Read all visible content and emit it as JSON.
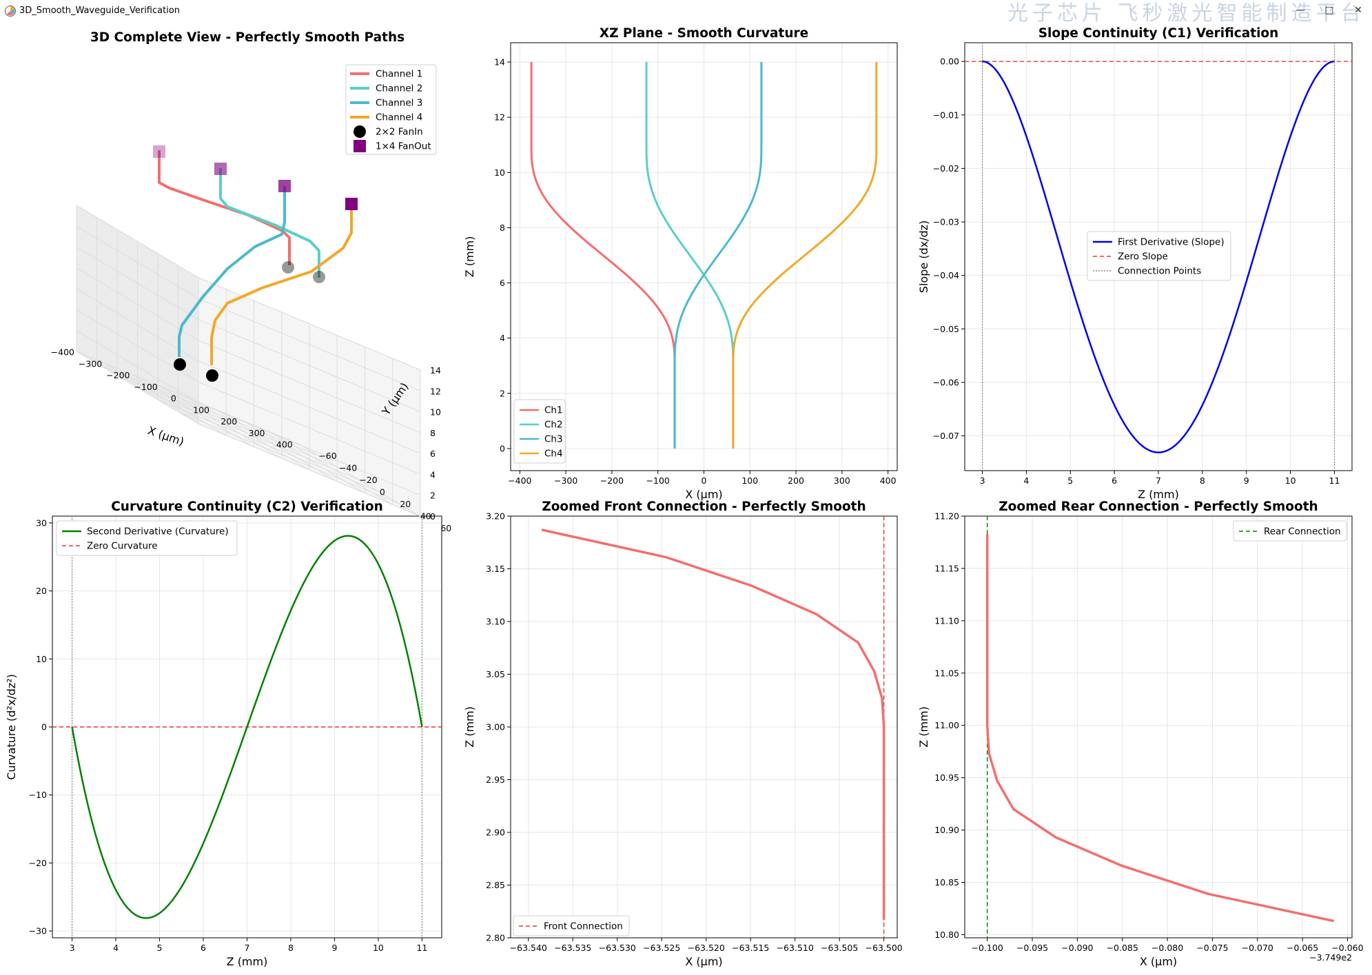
{
  "window": {
    "title": "3D_Smooth_Waveguide_Verification",
    "watermark": "光子芯片 飞秒激光智能制造平台",
    "minimize_label": "—",
    "maximize_label": "□",
    "close_label": "✕",
    "app_icon": "matplotlib-icon"
  },
  "colors": {
    "ch1": "#f46d6d",
    "ch2": "#59cfc8",
    "ch3": "#4bb8d0",
    "ch4": "#f1a82a",
    "blue": "#0000ee",
    "green": "#008000",
    "red_dash": "#ee3333",
    "purple": "#800080"
  },
  "chart_data": [
    {
      "id": "3d",
      "type": "line",
      "title": "3D Complete View - Perfectly Smooth Paths",
      "xlabel": "X (μm)",
      "ylabel": "Y (μm)",
      "zlabel": "",
      "x_ticks": [
        "−400",
        "−300",
        "−200",
        "−100",
        "0",
        "100",
        "200",
        "300",
        "400"
      ],
      "y_ticks": [
        "60",
        "40",
        "20",
        "0",
        "−20",
        "−40",
        "−60"
      ],
      "z_ticks": [
        "14",
        "12",
        "10",
        "8",
        "6",
        "4",
        "2",
        "0"
      ],
      "legend": [
        {
          "label": "Channel 1",
          "kind": "line",
          "color": "#f46d6d"
        },
        {
          "label": "Channel 2",
          "kind": "line",
          "color": "#59cfc8"
        },
        {
          "label": "Channel 3",
          "kind": "line",
          "color": "#4bb8d0"
        },
        {
          "label": "Channel 4",
          "kind": "line",
          "color": "#f1a82a"
        },
        {
          "label": "2×2 FanIn",
          "kind": "circle",
          "color": "#000000"
        },
        {
          "label": "1×4 FanOut",
          "kind": "square",
          "color": "#800080"
        }
      ],
      "legend_position": "top-right"
    },
    {
      "id": "xz",
      "type": "line",
      "title": "XZ Plane - Smooth Curvature",
      "xlabel": "X (μm)",
      "ylabel": "Z (mm)",
      "xlim": [
        -420,
        420
      ],
      "ylim": [
        -0.8,
        14.7
      ],
      "x_ticks": [
        -400,
        -300,
        -200,
        -100,
        0,
        100,
        200,
        300,
        400
      ],
      "x_tick_labels": [
        "−400",
        "−300",
        "−200",
        "−100",
        "0",
        "100",
        "200",
        "300",
        "400"
      ],
      "y_ticks": [
        0,
        2,
        4,
        6,
        8,
        10,
        12,
        14
      ],
      "y_tick_labels": [
        "0",
        "2",
        "4",
        "6",
        "8",
        "10",
        "12",
        "14"
      ],
      "legend_position": "bottom-left",
      "series": [
        {
          "name": "Ch1",
          "color": "#f46d6d",
          "x_start": -63.5,
          "x_end": -374.9,
          "z_bend_start": 3,
          "z_bend_end": 11,
          "z_top": 14
        },
        {
          "name": "Ch2",
          "color": "#59cfc8",
          "x_start": 63.5,
          "x_end": -124.9,
          "z_bend_start": 3,
          "z_bend_end": 11,
          "z_top": 14
        },
        {
          "name": "Ch3",
          "color": "#4bb8d0",
          "x_start": -63.5,
          "x_end": 124.9,
          "z_bend_start": 3,
          "z_bend_end": 11,
          "z_top": 14
        },
        {
          "name": "Ch4",
          "color": "#f1a82a",
          "x_start": 63.5,
          "x_end": 374.9,
          "z_bend_start": 3,
          "z_bend_end": 11,
          "z_top": 14
        }
      ]
    },
    {
      "id": "c1",
      "type": "line",
      "title": "Slope Continuity (C1) Verification",
      "xlabel": "Z (mm)",
      "ylabel": "Slope (dx/dz)",
      "xlim": [
        2.6,
        11.4
      ],
      "ylim": [
        -0.0765,
        0.0035
      ],
      "x_ticks": [
        3,
        4,
        5,
        6,
        7,
        8,
        9,
        10,
        11
      ],
      "x_tick_labels": [
        "3",
        "4",
        "5",
        "6",
        "7",
        "8",
        "9",
        "10",
        "11"
      ],
      "y_ticks": [
        0,
        -0.01,
        -0.02,
        -0.03,
        -0.04,
        -0.05,
        -0.06,
        -0.07
      ],
      "y_tick_labels": [
        "0.00",
        "−0.01",
        "−0.02",
        "−0.03",
        "−0.04",
        "−0.05",
        "−0.06",
        "−0.07"
      ],
      "legend_position": "center",
      "series": [
        {
          "name": "First Derivative (Slope)",
          "color": "#0000ee",
          "z_range": [
            3,
            11
          ],
          "min_value": -0.0731,
          "min_at": 7
        }
      ],
      "legend": [
        "First Derivative (Slope)",
        "Zero Slope",
        "Connection Points"
      ],
      "zero_line": 0,
      "connection_points": [
        3,
        11
      ]
    },
    {
      "id": "c2",
      "type": "line",
      "title": "Curvature Continuity (C2) Verification",
      "xlabel": "Z (mm)",
      "ylabel": "Curvature (d²x/dz²)",
      "xlim": [
        2.55,
        11.45
      ],
      "ylim": [
        -31,
        31
      ],
      "x_ticks": [
        3,
        4,
        5,
        6,
        7,
        8,
        9,
        10,
        11
      ],
      "x_tick_labels": [
        "3",
        "4",
        "5",
        "6",
        "7",
        "8",
        "9",
        "10",
        "11"
      ],
      "y_ticks": [
        30,
        20,
        10,
        0,
        -10,
        -20,
        -30
      ],
      "y_tick_labels": [
        "30",
        "20",
        "10",
        "0",
        "−10",
        "−20",
        "−30"
      ],
      "legend_position": "top-left",
      "series": [
        {
          "name": "Second Derivative (Curvature)",
          "color": "#008000",
          "z_range": [
            3,
            11
          ],
          "extreme_value": 28.1,
          "min_at": 4.69,
          "max_at": 9.31
        }
      ],
      "legend": [
        "Second Derivative (Curvature)",
        "Zero Curvature"
      ],
      "zero_line": 0,
      "connection_points": [
        3,
        11
      ]
    },
    {
      "id": "front",
      "type": "line",
      "title": "Zoomed Front Connection - Perfectly Smooth",
      "xlabel": "X (μm)",
      "ylabel": "Z (mm)",
      "xlim": [
        -63.542,
        -63.4985
      ],
      "ylim": [
        2.8,
        3.2
      ],
      "x_ticks": [
        -63.54,
        -63.535,
        -63.53,
        -63.525,
        -63.52,
        -63.515,
        -63.51,
        -63.505,
        -63.5
      ],
      "x_tick_labels": [
        "−63.540",
        "−63.535",
        "−63.530",
        "−63.525",
        "−63.520",
        "−63.515",
        "−63.510",
        "−63.505",
        "−63.500"
      ],
      "y_ticks": [
        2.8,
        2.85,
        2.9,
        2.95,
        3.0,
        3.05,
        3.1,
        3.15,
        3.2
      ],
      "y_tick_labels": [
        "2.80",
        "2.85",
        "2.90",
        "2.95",
        "3.00",
        "3.05",
        "3.10",
        "3.15",
        "3.20"
      ],
      "legend_position": "bottom-left",
      "legend": [
        "Front Connection"
      ],
      "connection_x": -63.5,
      "series": [
        {
          "name": "",
          "color": "#f46d6d",
          "points": [
            [
              -63.5,
              2.817
            ],
            [
              -63.5,
              2.95
            ],
            [
              -63.5,
              3.0
            ],
            [
              -63.5002,
              3.027
            ],
            [
              -63.5011,
              3.053
            ],
            [
              -63.5029,
              3.08
            ],
            [
              -63.5076,
              3.107
            ],
            [
              -63.5149,
              3.134
            ],
            [
              -63.5245,
              3.161
            ],
            [
              -63.5385,
              3.187
            ]
          ]
        }
      ]
    },
    {
      "id": "rear",
      "type": "line",
      "title": "Zoomed Rear Connection - Perfectly Smooth",
      "xlabel": "X (μm)",
      "ylabel": "Z (mm)",
      "x_offset_label": "−3.749e2",
      "xlim": [
        -0.1025,
        -0.0595
      ],
      "ylim": [
        10.797,
        11.2
      ],
      "x_ticks": [
        -0.1,
        -0.095,
        -0.09,
        -0.085,
        -0.08,
        -0.075,
        -0.07,
        -0.065,
        -0.06
      ],
      "x_tick_labels": [
        "−0.100",
        "−0.095",
        "−0.090",
        "−0.085",
        "−0.080",
        "−0.075",
        "−0.070",
        "−0.065",
        "−0.060"
      ],
      "y_ticks": [
        10.8,
        10.85,
        10.9,
        10.95,
        11.0,
        11.05,
        11.1,
        11.15,
        11.2
      ],
      "y_tick_labels": [
        "10.80",
        "10.85",
        "10.90",
        "10.95",
        "11.00",
        "11.05",
        "11.10",
        "11.15",
        "11.20"
      ],
      "legend_position": "top-right",
      "legend": [
        "Rear Connection"
      ],
      "connection_x": -0.1,
      "series": [
        {
          "name": "",
          "color": "#f46d6d",
          "points": [
            [
              -0.1,
              11.183
            ],
            [
              -0.1,
              11.05
            ],
            [
              -0.1,
              11.0
            ],
            [
              -0.0998,
              10.973
            ],
            [
              -0.0989,
              10.947
            ],
            [
              -0.0971,
              10.92
            ],
            [
              -0.0924,
              10.893
            ],
            [
              -0.0851,
              10.866
            ],
            [
              -0.0755,
              10.839
            ],
            [
              -0.0615,
              10.813
            ]
          ]
        }
      ]
    }
  ]
}
